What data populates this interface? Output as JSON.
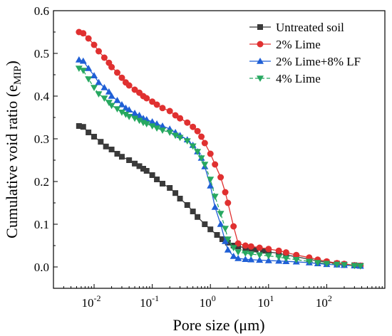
{
  "chart_data": {
    "type": "line",
    "title": "",
    "xlabel": "Pore size (μm)",
    "ylabel_main": "Cumulative void ratio (e",
    "ylabel_sub": "MIP",
    "ylabel_close": ")",
    "x_scale": "log",
    "xlim": [
      0.002,
      1000
    ],
    "ylim": [
      -0.05,
      0.6
    ],
    "x_ticks": [
      {
        "value": 0.01,
        "base": "10",
        "exp": "-2"
      },
      {
        "value": 0.1,
        "base": "10",
        "exp": "-1"
      },
      {
        "value": 1,
        "base": "10",
        "exp": "0"
      },
      {
        "value": 10,
        "base": "10",
        "exp": "1"
      },
      {
        "value": 100,
        "base": "10",
        "exp": "2"
      }
    ],
    "y_ticks": [
      "0.0",
      "0.1",
      "0.2",
      "0.3",
      "0.4",
      "0.5",
      "0.6"
    ],
    "y_tick_values": [
      0.0,
      0.1,
      0.2,
      0.3,
      0.4,
      0.5,
      0.6
    ],
    "grid": false,
    "legend_position": "top-right",
    "series": [
      {
        "name": "Untreated soil",
        "color": "#3a3a3a",
        "marker": "square",
        "x": [
          0.0055,
          0.0065,
          0.008,
          0.01,
          0.013,
          0.016,
          0.02,
          0.025,
          0.03,
          0.04,
          0.05,
          0.06,
          0.07,
          0.08,
          0.1,
          0.12,
          0.15,
          0.2,
          0.25,
          0.3,
          0.4,
          0.5,
          0.6,
          0.8,
          1.0,
          1.3,
          1.6,
          2.0,
          2.5,
          3.0,
          4.0,
          5.0,
          6.0,
          8.0,
          10,
          15,
          20,
          30,
          50,
          70,
          100,
          150,
          200,
          300,
          380
        ],
        "y": [
          0.33,
          0.328,
          0.315,
          0.305,
          0.293,
          0.282,
          0.275,
          0.265,
          0.258,
          0.25,
          0.242,
          0.236,
          0.23,
          0.225,
          0.215,
          0.205,
          0.195,
          0.185,
          0.173,
          0.16,
          0.145,
          0.13,
          0.117,
          0.1,
          0.088,
          0.075,
          0.065,
          0.057,
          0.05,
          0.048,
          0.045,
          0.043,
          0.041,
          0.038,
          0.035,
          0.032,
          0.028,
          0.024,
          0.018,
          0.014,
          0.011,
          0.008,
          0.006,
          0.004,
          0.003
        ]
      },
      {
        "name": "2% Lime",
        "color": "#e03030",
        "marker": "circle",
        "x": [
          0.0055,
          0.0065,
          0.008,
          0.01,
          0.012,
          0.015,
          0.018,
          0.02,
          0.025,
          0.03,
          0.035,
          0.04,
          0.05,
          0.06,
          0.07,
          0.08,
          0.1,
          0.12,
          0.15,
          0.2,
          0.25,
          0.3,
          0.4,
          0.5,
          0.6,
          0.7,
          0.8,
          1.0,
          1.2,
          1.5,
          1.8,
          2.0,
          2.5,
          3.0,
          4.0,
          5.0,
          7.0,
          10,
          15,
          20,
          30,
          50,
          70,
          100,
          150,
          200,
          300,
          380
        ],
        "y": [
          0.55,
          0.547,
          0.535,
          0.52,
          0.505,
          0.49,
          0.478,
          0.468,
          0.455,
          0.443,
          0.432,
          0.425,
          0.415,
          0.408,
          0.4,
          0.395,
          0.387,
          0.38,
          0.372,
          0.365,
          0.355,
          0.348,
          0.338,
          0.328,
          0.318,
          0.305,
          0.29,
          0.265,
          0.24,
          0.21,
          0.175,
          0.15,
          0.095,
          0.055,
          0.05,
          0.048,
          0.045,
          0.042,
          0.038,
          0.034,
          0.028,
          0.022,
          0.017,
          0.013,
          0.009,
          0.007,
          0.004,
          0.003
        ]
      },
      {
        "name": "2% Lime+8% LF",
        "color": "#1f5fd6",
        "marker": "triangle-up",
        "x": [
          0.0055,
          0.0065,
          0.008,
          0.01,
          0.012,
          0.015,
          0.018,
          0.02,
          0.025,
          0.03,
          0.035,
          0.04,
          0.05,
          0.06,
          0.07,
          0.08,
          0.1,
          0.12,
          0.15,
          0.2,
          0.25,
          0.3,
          0.4,
          0.5,
          0.6,
          0.7,
          0.8,
          1.0,
          1.2,
          1.5,
          1.8,
          2.0,
          2.5,
          3.0,
          4.0,
          5.0,
          7.0,
          10,
          15,
          20,
          30,
          50,
          70,
          100,
          150,
          200,
          300,
          380
        ],
        "y": [
          0.485,
          0.482,
          0.465,
          0.448,
          0.432,
          0.42,
          0.41,
          0.4,
          0.39,
          0.38,
          0.372,
          0.368,
          0.36,
          0.355,
          0.348,
          0.345,
          0.34,
          0.335,
          0.33,
          0.323,
          0.315,
          0.308,
          0.298,
          0.285,
          0.27,
          0.255,
          0.235,
          0.19,
          0.14,
          0.1,
          0.06,
          0.04,
          0.025,
          0.02,
          0.018,
          0.017,
          0.016,
          0.015,
          0.014,
          0.013,
          0.012,
          0.01,
          0.008,
          0.006,
          0.005,
          0.004,
          0.003,
          0.002
        ]
      },
      {
        "name": "4% Lime",
        "color": "#27a860",
        "marker": "triangle-down",
        "x": [
          0.0055,
          0.0065,
          0.008,
          0.01,
          0.012,
          0.015,
          0.018,
          0.02,
          0.025,
          0.03,
          0.035,
          0.04,
          0.05,
          0.06,
          0.07,
          0.08,
          0.1,
          0.12,
          0.15,
          0.2,
          0.25,
          0.3,
          0.4,
          0.5,
          0.6,
          0.7,
          0.8,
          1.0,
          1.2,
          1.5,
          1.8,
          2.0,
          2.5,
          3.0,
          4.0,
          5.0,
          7.0,
          10,
          15,
          20,
          30,
          50,
          70,
          100,
          150,
          200,
          300,
          380
        ],
        "y": [
          0.465,
          0.46,
          0.44,
          0.42,
          0.405,
          0.395,
          0.385,
          0.378,
          0.37,
          0.362,
          0.357,
          0.352,
          0.348,
          0.343,
          0.338,
          0.335,
          0.33,
          0.325,
          0.32,
          0.315,
          0.308,
          0.303,
          0.295,
          0.283,
          0.27,
          0.255,
          0.24,
          0.205,
          0.165,
          0.125,
          0.09,
          0.065,
          0.045,
          0.035,
          0.032,
          0.03,
          0.028,
          0.026,
          0.023,
          0.02,
          0.017,
          0.013,
          0.01,
          0.008,
          0.006,
          0.005,
          0.003,
          0.002
        ]
      }
    ]
  }
}
